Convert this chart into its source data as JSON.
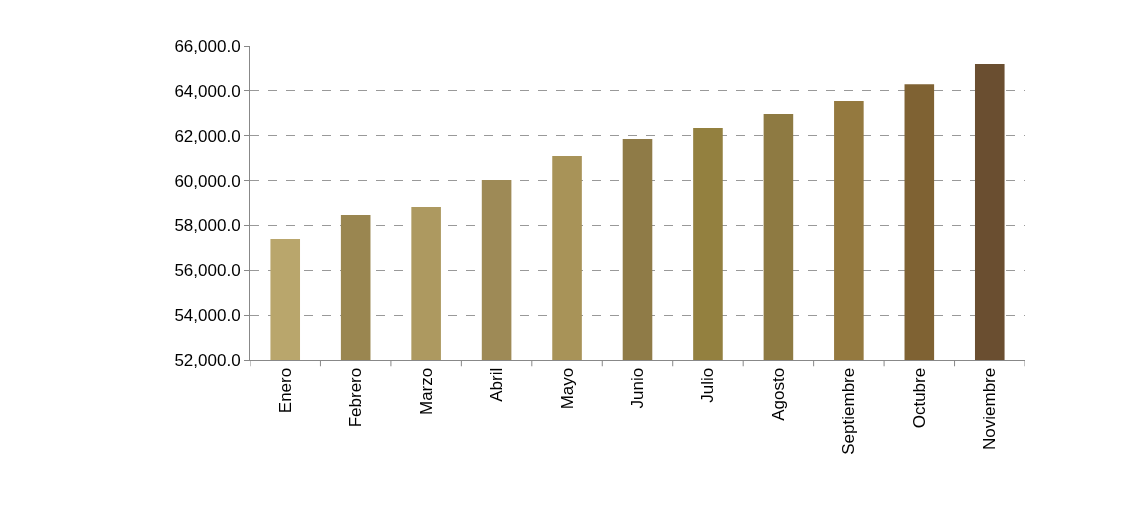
{
  "chart_data": {
    "type": "bar",
    "categories": [
      "Enero",
      "Febrero",
      "Marzo",
      "Abril",
      "Mayo",
      "Junio",
      "Julio",
      "Agosto",
      "Septiembre",
      "Octubre",
      "Noviembre"
    ],
    "values": [
      57400,
      58460,
      58820,
      60030,
      61100,
      61850,
      62340,
      62970,
      63550,
      64300,
      65200
    ],
    "colors": [
      "#b9a66c",
      "#9a8650",
      "#ad9960",
      "#9e8a56",
      "#a89358",
      "#8f7b47",
      "#93803f",
      "#8e7a42",
      "#94793f",
      "#7f6233",
      "#6a4e30"
    ],
    "ylim": [
      52000,
      66000
    ],
    "yticks": [
      {
        "value": 52000,
        "label": "52,000.0"
      },
      {
        "value": 54000,
        "label": "54,000.0"
      },
      {
        "value": 56000,
        "label": "56,000.0"
      },
      {
        "value": 58000,
        "label": "58,000.0"
      },
      {
        "value": 60000,
        "label": "60,000.0"
      },
      {
        "value": 62000,
        "label": "62,000.0"
      },
      {
        "value": 64000,
        "label": "64,000.0"
      },
      {
        "value": 66000,
        "label": "66,000.0"
      }
    ],
    "grid": "y"
  }
}
